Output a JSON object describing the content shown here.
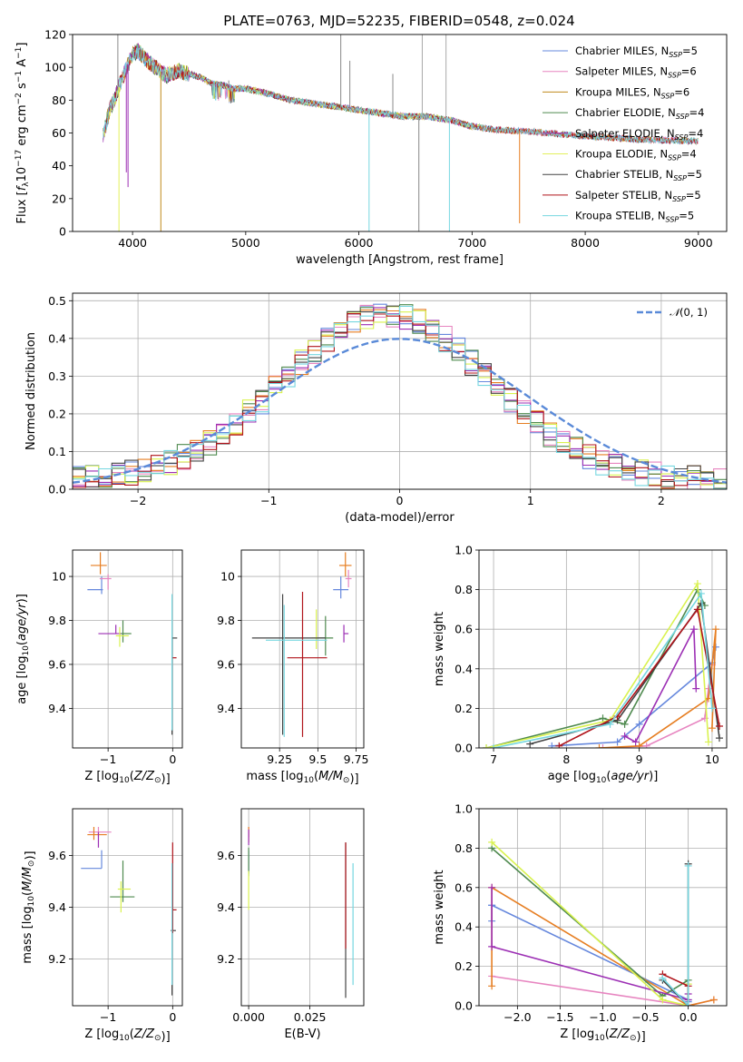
{
  "figure": {
    "title": "PLATE=0763, MJD=52235, FIBERID=0548, z=0.024"
  },
  "colors": [
    "#6688dd",
    "#e785c0",
    "#c08a1c",
    "#4f8a4f",
    "#9c2fb4",
    "#e3f05c",
    "#444444",
    "#b0141b",
    "#76d7e0"
  ],
  "fit_colors": [
    "#6688dd",
    "#e785c0",
    "#e67e22",
    "#4f8a4f",
    "#9c2fb4",
    "#d9f24f",
    "#444444",
    "#b0141b",
    "#76d7e0"
  ],
  "chart_data": [
    {
      "id": "spectrum",
      "type": "line",
      "xlabel": "wavelength [Angstrom, rest frame]",
      "ylabel": "Flux [f_λ 10^-17 erg cm^-2 s^-1 A^-1]",
      "xlim": [
        3470,
        9250
      ],
      "ylim": [
        0,
        120
      ],
      "xticks": [
        4000,
        5000,
        6000,
        7000,
        8000,
        9000
      ],
      "yticks": [
        0,
        20,
        40,
        60,
        80,
        100,
        120
      ],
      "grid": false,
      "legend_position": "top-right",
      "legend": [
        "Chabrier MILES, N_SSP=5",
        "Salpeter MILES, N_SSP=6",
        "Kroupa MILES, N_SSP=6",
        "Chabrier ELODIE, N_SSP=4",
        "Salpeter ELODIE, N_SSP=4",
        "Kroupa ELODIE, N_SSP=4",
        "Chabrier STELIB, N_SSP=5",
        "Salpeter STELIB, N_SSP=5",
        "Kroupa STELIB, N_SSP=5"
      ],
      "continuum": [
        [
          3740,
          58
        ],
        [
          3800,
          75
        ],
        [
          3850,
          82
        ],
        [
          3900,
          92
        ],
        [
          3950,
          100
        ],
        [
          4000,
          108
        ],
        [
          4050,
          110
        ],
        [
          4100,
          106
        ],
        [
          4200,
          100
        ],
        [
          4300,
          95
        ],
        [
          4400,
          98
        ],
        [
          4500,
          96
        ],
        [
          4600,
          94
        ],
        [
          4700,
          90
        ],
        [
          4800,
          89
        ],
        [
          4900,
          87
        ],
        [
          5000,
          87
        ],
        [
          5200,
          84
        ],
        [
          5400,
          80
        ],
        [
          5600,
          78
        ],
        [
          5800,
          76
        ],
        [
          6000,
          74
        ],
        [
          6200,
          72
        ],
        [
          6400,
          70
        ],
        [
          6600,
          70
        ],
        [
          6800,
          68
        ],
        [
          7000,
          64
        ],
        [
          7200,
          62
        ],
        [
          7500,
          61
        ],
        [
          8000,
          58
        ],
        [
          8500,
          56
        ],
        [
          9000,
          55
        ]
      ],
      "spikes": [
        [
          4250,
          0,
          "#c08a1c"
        ],
        [
          3880,
          0,
          "#e3f05c"
        ],
        [
          3945,
          36,
          "#9c2fb4"
        ],
        [
          3960,
          27,
          "#9c2fb4"
        ],
        [
          6090,
          0,
          "#76d7e0"
        ],
        [
          6530,
          0,
          "#888888"
        ],
        [
          6560,
          120,
          "#aaaaaa"
        ],
        [
          6800,
          0,
          "#76d7e0"
        ],
        [
          6770,
          120,
          "#aaaaaa"
        ],
        [
          7420,
          5,
          "#e67e22"
        ],
        [
          5840,
          120,
          "#888888"
        ],
        [
          5920,
          104,
          "#888888"
        ],
        [
          6300,
          96,
          "#888888"
        ],
        [
          4850,
          92,
          "#888888"
        ],
        [
          3870,
          120,
          "#888888"
        ]
      ]
    },
    {
      "id": "residuals",
      "type": "histogram",
      "xlabel": "(data-model)/error",
      "ylabel": "Normed distribution",
      "xlim": [
        -2.5,
        2.5
      ],
      "ylim": [
        0,
        0.52
      ],
      "xticks": [
        -2,
        -1,
        0,
        1,
        2
      ],
      "yticks": [
        0.0,
        0.1,
        0.2,
        0.3,
        0.4,
        0.5
      ],
      "grid": true,
      "legend_position": "top-right",
      "legend": [
        "N(0,1)"
      ],
      "gaussian": {
        "mean": 0,
        "sigma": 1
      },
      "bin_width": 0.1,
      "bin_start": -2.5,
      "base_shape": {
        "center": -0.1,
        "sigma": 0.78
      }
    },
    {
      "id": "age-vs-Z",
      "type": "errorbar",
      "xlabel": "Z [log10(Z/Z_sun)]",
      "ylabel": "age [log10(age/yr)]",
      "xlim": [
        -1.55,
        0.15
      ],
      "ylim": [
        9.22,
        10.12
      ],
      "xticks": [
        -1,
        0
      ],
      "xticklabels": [
        "−1",
        "0"
      ],
      "yticks": [
        9.4,
        9.6,
        9.8,
        10.0
      ],
      "grid": true,
      "points": [
        {
          "x": -1.1,
          "y": 9.94,
          "ex": [
            0.22,
            0.02
          ],
          "ey": [
            0.02,
            0.06
          ]
        },
        {
          "x": -1.0,
          "y": 9.99,
          "ex": [
            0.13,
            0.05
          ],
          "ey": [
            0.05,
            0.02
          ]
        },
        {
          "x": -1.12,
          "y": 10.05,
          "ex": [
            0.15,
            0.1
          ],
          "ey": [
            0.04,
            0.06
          ]
        },
        {
          "x": -0.77,
          "y": 9.74,
          "ex": [
            0.05,
            0.13
          ],
          "ey": [
            0.04,
            0.06
          ]
        },
        {
          "x": -0.88,
          "y": 9.74,
          "ex": [
            0.27,
            0.08
          ],
          "ey": [
            0.0,
            0.04
          ]
        },
        {
          "x": -0.82,
          "y": 9.73,
          "ex": [
            0.06,
            0.14
          ],
          "ey": [
            0.05,
            0.04
          ]
        },
        {
          "x": -0.01,
          "y": 9.72,
          "ex": [
            0.0,
            0.08
          ],
          "ey": [
            0.44,
            0.0
          ]
        },
        {
          "x": 0.0,
          "y": 9.63,
          "ex": [
            0.0,
            0.06
          ],
          "ey": [
            0.0,
            0.0
          ]
        },
        {
          "x": -0.01,
          "y": 9.6,
          "ex": [
            0.0,
            0.0
          ],
          "ey": [
            0.3,
            0.32
          ]
        }
      ]
    },
    {
      "id": "age-vs-mass",
      "type": "errorbar",
      "xlabel": "mass [log10(M/M_sun)]",
      "ylabel": "",
      "xlim": [
        9.0,
        9.8
      ],
      "ylim": [
        9.22,
        10.12
      ],
      "xticks": [
        9.25,
        9.5,
        9.75
      ],
      "yticks": [
        9.4,
        9.6,
        9.8,
        10.0
      ],
      "grid": true,
      "points": [
        {
          "x": 9.65,
          "y": 9.94,
          "ex": [
            0.05,
            0.05
          ],
          "ey": [
            0.04,
            0.06
          ]
        },
        {
          "x": 9.7,
          "y": 9.99,
          "ex": [
            0.02,
            0.02
          ],
          "ey": [
            0.04,
            0.04
          ]
        },
        {
          "x": 9.68,
          "y": 10.05,
          "ex": [
            0.04,
            0.04
          ],
          "ey": [
            0.05,
            0.06
          ]
        },
        {
          "x": 9.55,
          "y": 9.72,
          "ex": [
            0.05,
            0.05
          ],
          "ey": [
            0.08,
            0.1
          ]
        },
        {
          "x": 9.67,
          "y": 9.74,
          "ex": [
            0.0,
            0.03
          ],
          "ey": [
            0.04,
            0.04
          ]
        },
        {
          "x": 9.49,
          "y": 9.72,
          "ex": [
            0.03,
            0.03
          ],
          "ey": [
            0.05,
            0.13
          ]
        },
        {
          "x": 9.27,
          "y": 9.72,
          "ex": [
            0.2,
            0.28
          ],
          "ey": [
            0.44,
            0.2
          ]
        },
        {
          "x": 9.4,
          "y": 9.63,
          "ex": [
            0.1,
            0.16
          ],
          "ey": [
            0.36,
            0.3
          ]
        },
        {
          "x": 9.28,
          "y": 9.71,
          "ex": [
            0.12,
            0.28
          ],
          "ey": [
            0.44,
            0.16
          ]
        }
      ]
    },
    {
      "id": "weight-vs-age",
      "type": "line",
      "xlabel": "age  [log10(age/yr)]",
      "ylabel": "mass weight",
      "xlim": [
        6.8,
        10.2
      ],
      "ylim": [
        0,
        1.0
      ],
      "xticks": [
        7,
        8,
        9,
        10
      ],
      "yticks": [
        0.0,
        0.2,
        0.4,
        0.6,
        0.8,
        1.0
      ],
      "grid": true,
      "series": [
        {
          "x": [
            7.8,
            8.7,
            9.0,
            10.0,
            10.05
          ],
          "y": [
            0.01,
            0.03,
            0.12,
            0.43,
            0.51
          ]
        },
        {
          "x": [
            8.5,
            9.1,
            9.9,
            9.95,
            10.0
          ],
          "y": [
            0.0,
            0.01,
            0.15,
            0.3,
            0.42
          ]
        },
        {
          "x": [
            8.45,
            9.0,
            9.95,
            10.05,
            10.0
          ],
          "y": [
            0.0,
            0.01,
            0.25,
            0.6,
            0.1
          ]
        },
        {
          "x": [
            6.9,
            8.5,
            8.8,
            9.8,
            9.9
          ],
          "y": [
            0.0,
            0.15,
            0.12,
            0.8,
            0.72
          ]
        },
        {
          "x": [
            8.8,
            8.95,
            9.75,
            9.78
          ],
          "y": [
            0.06,
            0.03,
            0.6,
            0.3
          ]
        },
        {
          "x": [
            6.9,
            8.6,
            9.8,
            9.95
          ],
          "y": [
            0.0,
            0.14,
            0.83,
            0.03
          ]
        },
        {
          "x": [
            7.5,
            8.7,
            9.85,
            10.1
          ],
          "y": [
            0.02,
            0.14,
            0.73,
            0.05
          ]
        },
        {
          "x": [
            7.9,
            8.7,
            9.8,
            10.1
          ],
          "y": [
            0.01,
            0.16,
            0.7,
            0.11
          ]
        },
        {
          "x": [
            7.0,
            8.6,
            9.85,
            10.0
          ],
          "y": [
            0.0,
            0.12,
            0.78,
            0.2
          ]
        }
      ]
    },
    {
      "id": "mass-vs-Z",
      "type": "errorbar",
      "xlabel": "Z [log10(Z/Z_sun)]",
      "ylabel": "mass [log10(M/M_sun)]",
      "xlim": [
        -1.55,
        0.15
      ],
      "ylim": [
        9.02,
        9.78
      ],
      "xticks": [
        -1,
        0
      ],
      "xticklabels": [
        "−1",
        "0"
      ],
      "yticks": [
        9.2,
        9.4,
        9.6
      ],
      "grid": true,
      "points": [
        {
          "x": -1.1,
          "y": 9.55,
          "ex": [
            0.32,
            0.0
          ],
          "ey": [
            0.0,
            0.07
          ]
        },
        {
          "x": -1.15,
          "y": 9.69,
          "ex": [
            0.15,
            0.2
          ],
          "ey": [
            0.02,
            0.02
          ]
        },
        {
          "x": -1.22,
          "y": 9.68,
          "ex": [
            0.1,
            0.2
          ],
          "ey": [
            0.02,
            0.03
          ]
        },
        {
          "x": -0.77,
          "y": 9.44,
          "ex": [
            0.2,
            0.18
          ],
          "ey": [
            0.02,
            0.14
          ]
        },
        {
          "x": -1.15,
          "y": 9.65,
          "ex": [
            0.0,
            0.0
          ],
          "ey": [
            0.02,
            0.04
          ]
        },
        {
          "x": -0.8,
          "y": 9.47,
          "ex": [
            0.05,
            0.15
          ],
          "ey": [
            0.09,
            0.03
          ]
        },
        {
          "x": -0.01,
          "y": 9.31,
          "ex": [
            0.02,
            0.06
          ],
          "ey": [
            0.25,
            0.26
          ]
        },
        {
          "x": 0.0,
          "y": 9.39,
          "ex": [
            0.0,
            0.06
          ],
          "ey": [
            0.09,
            0.26
          ]
        },
        {
          "x": -0.01,
          "y": 9.3,
          "ex": [
            0.0,
            0.0
          ],
          "ey": [
            0.2,
            0.27
          ]
        }
      ]
    },
    {
      "id": "mass-vs-ebv",
      "type": "errorbar",
      "xlabel": "E(B-V)",
      "ylabel": "",
      "xlim": [
        -0.003,
        0.047
      ],
      "ylim": [
        9.02,
        9.78
      ],
      "xticks": [
        0.0,
        0.025
      ],
      "xticklabels": [
        "0.000",
        "0.025"
      ],
      "yticks": [
        9.2,
        9.4,
        9.6
      ],
      "grid": true,
      "points": [
        {
          "x": 0.0,
          "y": 9.55,
          "ex": [
            0,
            0
          ],
          "ey": [
            0.03,
            0.07
          ]
        },
        {
          "x": 0.0,
          "y": 9.69,
          "ex": [
            0,
            0
          ],
          "ey": [
            0.02,
            0.02
          ]
        },
        {
          "x": 0.0,
          "y": 9.68,
          "ex": [
            0,
            0
          ],
          "ey": [
            0.03,
            0.03
          ]
        },
        {
          "x": 0.0,
          "y": 9.6,
          "ex": [
            0,
            0
          ],
          "ey": [
            0.07,
            0.03
          ]
        },
        {
          "x": 0.0,
          "y": 9.66,
          "ex": [
            0,
            0
          ],
          "ey": [
            0.02,
            0.04
          ]
        },
        {
          "x": 0.0,
          "y": 9.47,
          "ex": [
            0,
            0
          ],
          "ey": [
            0.08,
            0.07
          ]
        },
        {
          "x": 0.0396,
          "y": 9.3,
          "ex": [
            0,
            0
          ],
          "ey": [
            0.25,
            0.35
          ]
        },
        {
          "x": 0.0396,
          "y": 9.4,
          "ex": [
            0,
            0
          ],
          "ey": [
            0.16,
            0.25
          ]
        },
        {
          "x": 0.0426,
          "y": 9.3,
          "ex": [
            0,
            0
          ],
          "ey": [
            0.2,
            0.27
          ]
        }
      ]
    },
    {
      "id": "weight-vs-Z",
      "type": "line",
      "xlabel": "Z [log10(Z/Z_sun)]",
      "ylabel": "mass weight",
      "xlim": [
        -2.45,
        0.45
      ],
      "ylim": [
        0,
        1.0
      ],
      "xticks": [
        -2.0,
        -1.5,
        -1.0,
        -0.5,
        0.0
      ],
      "xticklabels": [
        "−2.0",
        "−1.5",
        "−1.0",
        "−0.5",
        "0.0"
      ],
      "yticks": [
        0.0,
        0.2,
        0.4,
        0.6,
        0.8,
        1.0
      ],
      "grid": true,
      "series": [
        {
          "x": [
            -2.3,
            -2.3,
            -2.3,
            0.0,
            0.0
          ],
          "y": [
            0.51,
            0.43,
            0.51,
            0.03,
            0.02
          ]
        },
        {
          "x": [
            -2.3,
            0.0,
            0.0,
            0.3
          ],
          "y": [
            0.15,
            0.0,
            0.0,
            0.03
          ]
        },
        {
          "x": [
            -2.3,
            -2.3,
            0.0,
            0.3,
            0.0
          ],
          "y": [
            0.1,
            0.6,
            0.0,
            0.03,
            0.0
          ]
        },
        {
          "x": [
            -2.3,
            -0.3,
            0.0,
            0.0
          ],
          "y": [
            0.8,
            0.05,
            0.13,
            0.0
          ]
        },
        {
          "x": [
            -2.3,
            -2.3,
            0.0,
            0.0
          ],
          "y": [
            0.6,
            0.3,
            0.03,
            0.06
          ]
        },
        {
          "x": [
            -2.3,
            -0.3,
            0.0,
            0.0
          ],
          "y": [
            0.83,
            0.03,
            0.0,
            0.11
          ]
        },
        {
          "x": [
            -0.3,
            0.0,
            0.0
          ],
          "y": [
            0.13,
            0.0,
            0.72
          ]
        },
        {
          "x": [
            -0.3,
            0.0,
            0.0
          ],
          "y": [
            0.16,
            0.1,
            0.0
          ]
        },
        {
          "x": [
            -0.3,
            0.0,
            0.0
          ],
          "y": [
            0.14,
            0.0,
            0.71
          ]
        }
      ]
    }
  ]
}
